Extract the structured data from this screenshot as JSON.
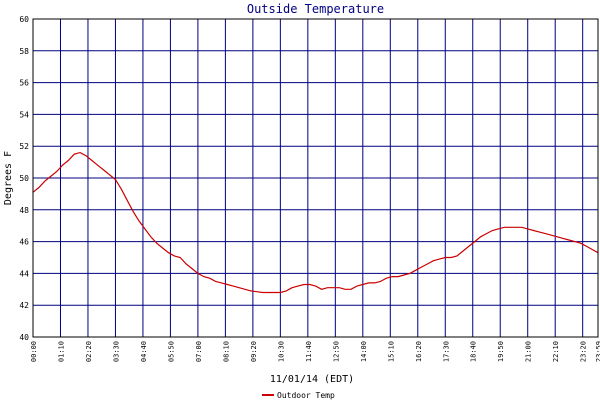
{
  "chart_data": {
    "type": "line",
    "title": "Outside Temperature",
    "xlabel": "11/01/14 (EDT)",
    "ylabel": "Degrees F",
    "ylim": [
      40,
      60
    ],
    "yticks": [
      "40",
      "42",
      "44",
      "46",
      "48",
      "50",
      "52",
      "54",
      "56",
      "58",
      "60"
    ],
    "xlim": [
      "00:00",
      "23:59"
    ],
    "xticks": [
      "00:00",
      "01:10",
      "02:20",
      "03:30",
      "04:40",
      "05:50",
      "07:00",
      "08:10",
      "09:20",
      "10:30",
      "11:40",
      "12:50",
      "14:00",
      "15:10",
      "16:20",
      "17:30",
      "18:40",
      "19:50",
      "21:00",
      "22:10",
      "23:20",
      "23:59"
    ],
    "grid": true,
    "legend_position": "bottom-left",
    "colors": {
      "title": "#000080",
      "grid": "#000080",
      "line": "#cc0000",
      "plot_border": "#000000"
    },
    "series": [
      {
        "name": "Outdoor Temp",
        "points": [
          [
            "00:00",
            49.1
          ],
          [
            "00:15",
            49.4
          ],
          [
            "00:30",
            49.8
          ],
          [
            "00:45",
            50.1
          ],
          [
            "01:00",
            50.4
          ],
          [
            "01:15",
            50.8
          ],
          [
            "01:30",
            51.1
          ],
          [
            "01:45",
            51.5
          ],
          [
            "02:00",
            51.6
          ],
          [
            "02:15",
            51.4
          ],
          [
            "02:30",
            51.1
          ],
          [
            "02:45",
            50.8
          ],
          [
            "03:00",
            50.5
          ],
          [
            "03:15",
            50.2
          ],
          [
            "03:30",
            49.9
          ],
          [
            "03:45",
            49.3
          ],
          [
            "04:00",
            48.6
          ],
          [
            "04:15",
            47.9
          ],
          [
            "04:30",
            47.3
          ],
          [
            "04:45",
            46.8
          ],
          [
            "05:00",
            46.3
          ],
          [
            "05:15",
            45.9
          ],
          [
            "05:30",
            45.6
          ],
          [
            "05:45",
            45.3
          ],
          [
            "06:00",
            45.1
          ],
          [
            "06:15",
            45.0
          ],
          [
            "06:30",
            44.6
          ],
          [
            "06:45",
            44.3
          ],
          [
            "07:00",
            44.0
          ],
          [
            "07:15",
            43.8
          ],
          [
            "07:30",
            43.7
          ],
          [
            "07:45",
            43.5
          ],
          [
            "08:00",
            43.4
          ],
          [
            "08:15",
            43.3
          ],
          [
            "08:30",
            43.2
          ],
          [
            "08:45",
            43.1
          ],
          [
            "09:00",
            43.0
          ],
          [
            "09:15",
            42.9
          ],
          [
            "09:30",
            42.85
          ],
          [
            "09:45",
            42.8
          ],
          [
            "10:00",
            42.8
          ],
          [
            "10:15",
            42.8
          ],
          [
            "10:30",
            42.8
          ],
          [
            "10:45",
            42.9
          ],
          [
            "11:00",
            43.1
          ],
          [
            "11:15",
            43.2
          ],
          [
            "11:30",
            43.3
          ],
          [
            "11:45",
            43.3
          ],
          [
            "12:00",
            43.2
          ],
          [
            "12:15",
            43.0
          ],
          [
            "12:30",
            43.1
          ],
          [
            "12:45",
            43.1
          ],
          [
            "13:00",
            43.1
          ],
          [
            "13:15",
            43.0
          ],
          [
            "13:30",
            43.0
          ],
          [
            "13:45",
            43.2
          ],
          [
            "14:00",
            43.3
          ],
          [
            "14:15",
            43.4
          ],
          [
            "14:30",
            43.4
          ],
          [
            "14:45",
            43.5
          ],
          [
            "15:00",
            43.7
          ],
          [
            "15:15",
            43.8
          ],
          [
            "15:30",
            43.8
          ],
          [
            "15:45",
            43.9
          ],
          [
            "16:00",
            44.0
          ],
          [
            "16:15",
            44.2
          ],
          [
            "16:30",
            44.4
          ],
          [
            "16:45",
            44.6
          ],
          [
            "17:00",
            44.8
          ],
          [
            "17:15",
            44.9
          ],
          [
            "17:30",
            45.0
          ],
          [
            "17:45",
            45.0
          ],
          [
            "18:00",
            45.1
          ],
          [
            "18:15",
            45.4
          ],
          [
            "18:30",
            45.7
          ],
          [
            "18:45",
            46.0
          ],
          [
            "19:00",
            46.3
          ],
          [
            "19:15",
            46.5
          ],
          [
            "19:30",
            46.7
          ],
          [
            "19:45",
            46.8
          ],
          [
            "20:00",
            46.9
          ],
          [
            "20:15",
            46.9
          ],
          [
            "20:30",
            46.9
          ],
          [
            "20:45",
            46.9
          ],
          [
            "21:00",
            46.8
          ],
          [
            "21:15",
            46.7
          ],
          [
            "21:30",
            46.6
          ],
          [
            "21:45",
            46.5
          ],
          [
            "22:00",
            46.4
          ],
          [
            "22:15",
            46.3
          ],
          [
            "22:30",
            46.2
          ],
          [
            "22:45",
            46.1
          ],
          [
            "23:00",
            46.0
          ],
          [
            "23:15",
            45.9
          ],
          [
            "23:30",
            45.7
          ],
          [
            "23:45",
            45.5
          ],
          [
            "23:59",
            45.3
          ]
        ]
      }
    ]
  }
}
